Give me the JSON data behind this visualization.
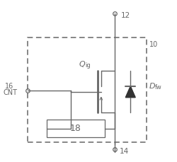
{
  "line_color": "#666666",
  "label_12": "12",
  "label_14": "14",
  "label_10": "10",
  "label_16": "16",
  "label_cnt": "CNT",
  "label_Qig": "Q",
  "label_ig_sub": "ig",
  "label_Dfw": "D",
  "label_fw_sub": "fw",
  "label_18": "18",
  "dark_fill": "#333333"
}
